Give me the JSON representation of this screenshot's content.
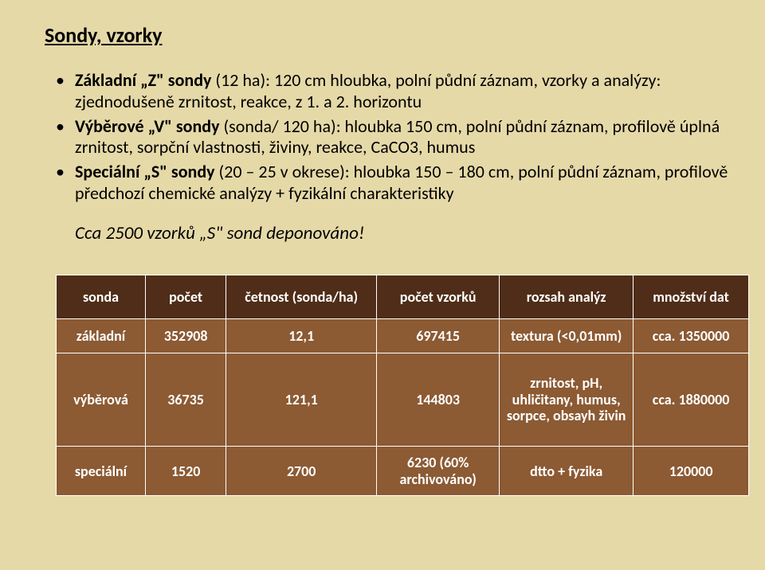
{
  "title": "Sondy, vzorky",
  "bullets": {
    "b1_pre": "Základní „Z\" sondy",
    "b1_rest": " (12 ha): 120 cm hloubka, polní půdní záznam, vzorky a analýzy: zjednodušeně zrnitost, reakce, z 1. a 2. horizontu",
    "b2_pre": "Výběrové „V\" sondy",
    "b2_rest": " (sonda/ 120 ha): hloubka 150 cm, polní půdní záznam, profilově úplná zrnitost, sorpční vlastnosti, živiny, reakce, CaCO3, humus",
    "b3_pre": "Speciální „S\" sondy",
    "b3_rest": " (20 – 25 v okrese): hloubka 150 – 180 cm, polní půdní záznam, profilově předchozí chemické analýzy + fyzikální charakteristiky"
  },
  "italic_line": "Cca 2500 vzorků „S\" sond deponováno!",
  "table": {
    "headers": [
      "sonda",
      "počet",
      "četnost (sonda/ha)",
      "počet vzorků",
      "rozsah analýz",
      "množství dat"
    ],
    "rows": [
      {
        "cells": [
          "základní",
          "352908",
          "12,1",
          "697415",
          "textura (<0,01mm)",
          "cca. 1350000"
        ],
        "tall": false
      },
      {
        "cells": [
          "výběrová",
          "36735",
          "121,1",
          "144803",
          "zrnitost, pH, uhličitany, humus, sorpce, obsayh živin",
          "cca. 1880000"
        ],
        "tall": true
      },
      {
        "cells": [
          "speciální",
          "1520",
          "2700",
          "6230 (60% archivováno)",
          "dtto + fyzika",
          "120000"
        ],
        "tall": false
      }
    ]
  },
  "colors": {
    "page_bg": "#e6d9a8",
    "header_row_bg": "#4f2d18",
    "body_row_bg": "#8c5a33",
    "border": "#ffffff",
    "text_light": "#ffffff",
    "text_dark": "#000000"
  },
  "typography": {
    "title_fontsize": 26,
    "bullet_fontsize": 22,
    "italic_fontsize": 23,
    "table_fontsize": 18
  }
}
